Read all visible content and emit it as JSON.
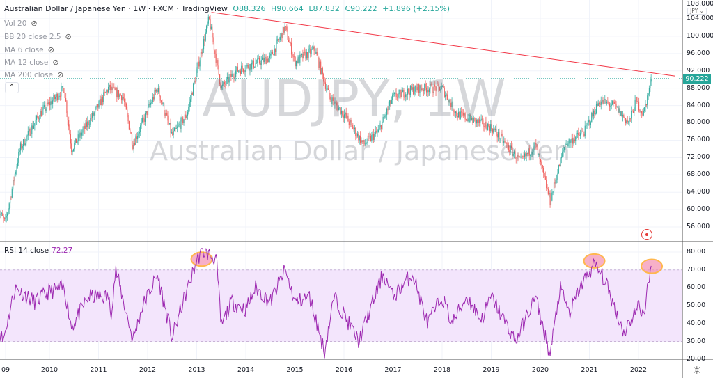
{
  "header": {
    "symbol": "Australian Dollar / Japanese Yen · 1W · FXCM · TradingView",
    "open": "O88.326",
    "high": "H90.664",
    "low": "L87.832",
    "close": "C90.222",
    "change": "+1.896 (+2.15%)"
  },
  "indicators": [
    "Vol 20",
    "BB 20 close 2.5",
    "MA 6 close",
    "MA 12 close",
    "MA 200 close"
  ],
  "watermark": {
    "ticker": "AUDJPY, 1W",
    "name": "Australian Dollar / Japanese Yen"
  },
  "price_axis": {
    "currency": "JPY ⌄",
    "top_partial": "108.000",
    "ticks": [
      "104.000",
      "100.000",
      "96.000",
      "92.000",
      "88.000",
      "84.000",
      "80.000",
      "76.000",
      "72.000",
      "68.000",
      "64.000",
      "60.000",
      "56.000"
    ],
    "last_price": "90.222"
  },
  "rsi": {
    "label": "RSI 14 close",
    "value": "72.27",
    "ticks": [
      "80.00",
      "70.00",
      "60.00",
      "50.00",
      "40.00",
      "30.00",
      "20.00"
    ]
  },
  "time_axis": [
    "09",
    "2010",
    "2011",
    "2012",
    "2013",
    "2014",
    "2015",
    "2016",
    "2017",
    "2018",
    "2019",
    "2020",
    "2021",
    "2022"
  ],
  "colors": {
    "up": "#26a69a",
    "down": "#ef5350",
    "rsi": "#9c27b0",
    "band": "#f3e5fc",
    "trend": "#f23645",
    "highlight": "#ffb74d"
  },
  "chart_data": [
    {
      "type": "candlestick",
      "title": "AUDJPY 1W",
      "ylim": [
        54,
        108
      ],
      "xlim": [
        2008.95,
        2022.9
      ],
      "keypoints": [
        [
          2008.95,
          60
        ],
        [
          2009.1,
          57
        ],
        [
          2009.4,
          74
        ],
        [
          2009.8,
          82
        ],
        [
          2010.3,
          88
        ],
        [
          2010.45,
          74
        ],
        [
          2010.9,
          82
        ],
        [
          2011.2,
          88
        ],
        [
          2011.5,
          86
        ],
        [
          2011.7,
          75
        ],
        [
          2012.2,
          88
        ],
        [
          2012.5,
          77
        ],
        [
          2012.8,
          82
        ],
        [
          2013.25,
          104
        ],
        [
          2013.5,
          88
        ],
        [
          2013.8,
          92
        ],
        [
          2014.5,
          95
        ],
        [
          2014.8,
          102
        ],
        [
          2015.0,
          94
        ],
        [
          2015.4,
          97
        ],
        [
          2015.7,
          86
        ],
        [
          2016.0,
          82
        ],
        [
          2016.4,
          75
        ],
        [
          2016.7,
          78
        ],
        [
          2017.0,
          86
        ],
        [
          2017.5,
          88
        ],
        [
          2018.0,
          88
        ],
        [
          2018.3,
          82
        ],
        [
          2019.0,
          79
        ],
        [
          2019.6,
          71
        ],
        [
          2019.9,
          75
        ],
        [
          2020.2,
          62
        ],
        [
          2020.5,
          75
        ],
        [
          2020.9,
          78
        ],
        [
          2021.2,
          85
        ],
        [
          2021.5,
          84
        ],
        [
          2021.8,
          80
        ],
        [
          2021.95,
          85
        ],
        [
          2022.1,
          82
        ],
        [
          2022.27,
          90.222
        ]
      ],
      "trendline": [
        [
          2013.3,
          105.5
        ],
        [
          2022.75,
          90.8
        ]
      ]
    },
    {
      "type": "line",
      "title": "RSI 14 close",
      "ylim": [
        18,
        84
      ],
      "bands": [
        30,
        70
      ],
      "keypoints": [
        [
          2008.95,
          40
        ],
        [
          2009.05,
          30
        ],
        [
          2009.3,
          60
        ],
        [
          2009.7,
          52
        ],
        [
          2010.0,
          58
        ],
        [
          2010.3,
          60
        ],
        [
          2010.45,
          38
        ],
        [
          2010.8,
          55
        ],
        [
          2011.2,
          55
        ],
        [
          2011.25,
          45
        ],
        [
          2011.35,
          70
        ],
        [
          2011.7,
          31
        ],
        [
          2011.9,
          50
        ],
        [
          2012.2,
          67
        ],
        [
          2012.5,
          32
        ],
        [
          2012.7,
          50
        ],
        [
          2013.0,
          75
        ],
        [
          2013.1,
          81
        ],
        [
          2013.4,
          76
        ],
        [
          2013.5,
          38
        ],
        [
          2013.7,
          52
        ],
        [
          2014.0,
          48
        ],
        [
          2014.2,
          60
        ],
        [
          2014.5,
          52
        ],
        [
          2014.8,
          70
        ],
        [
          2015.0,
          52
        ],
        [
          2015.3,
          55
        ],
        [
          2015.5,
          35
        ],
        [
          2015.6,
          24
        ],
        [
          2015.8,
          55
        ],
        [
          2016.0,
          45
        ],
        [
          2016.3,
          30
        ],
        [
          2016.8,
          68
        ],
        [
          2017.0,
          55
        ],
        [
          2017.4,
          68
        ],
        [
          2017.7,
          40
        ],
        [
          2018.0,
          55
        ],
        [
          2018.2,
          40
        ],
        [
          2018.5,
          55
        ],
        [
          2018.8,
          42
        ],
        [
          2019.0,
          55
        ],
        [
          2019.5,
          30
        ],
        [
          2019.9,
          55
        ],
        [
          2020.2,
          22
        ],
        [
          2020.4,
          60
        ],
        [
          2020.6,
          45
        ],
        [
          2020.8,
          60
        ],
        [
          2021.1,
          73
        ],
        [
          2021.3,
          65
        ],
        [
          2021.7,
          35
        ],
        [
          2022.0,
          50
        ],
        [
          2022.1,
          45
        ],
        [
          2022.27,
          72.27
        ]
      ],
      "highlights": [
        [
          2013.1,
          76
        ],
        [
          2021.1,
          75
        ],
        [
          2022.27,
          72
        ]
      ]
    }
  ]
}
